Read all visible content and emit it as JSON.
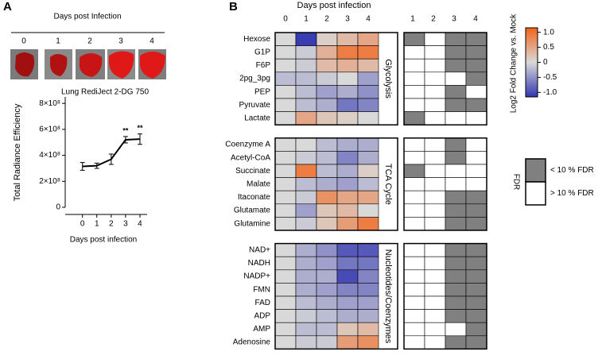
{
  "panel_labels": [
    "A",
    "B"
  ],
  "images": {
    "header": "Days post Infection",
    "labels": [
      "0",
      "1",
      "2",
      "3",
      "4"
    ]
  },
  "chart_data": [
    {
      "type": "line",
      "title": "Lung RediJect 2-DG 750",
      "x_label": "Days post infection",
      "y_label": "Total Radiance Efficiency",
      "x": [
        0,
        1,
        2,
        3,
        4
      ],
      "values": [
        315000000,
        320000000,
        370000000,
        520000000,
        525000000
      ],
      "errors": [
        30000000,
        20000000,
        40000000,
        25000000,
        40000000
      ],
      "color": "#000000",
      "xlim": [
        -1.2,
        4.5
      ],
      "xticks": [
        0,
        1,
        2,
        3,
        4
      ],
      "ylim": [
        0,
        850000000
      ],
      "yticks": [
        0,
        {
          "value": 200000000,
          "label": "2×10⁸"
        },
        {
          "value": 400000000,
          "label": "4×10⁸"
        },
        {
          "value": 600000000,
          "label": "6×10⁸"
        },
        {
          "value": 800000000,
          "label": "8×10⁸"
        }
      ],
      "annotations": [
        {
          "x": 3,
          "text": "**"
        },
        {
          "x": 4,
          "text": "**"
        }
      ]
    },
    {
      "type": "heatmap",
      "title": "Days post infection",
      "columns": [
        "0",
        "1",
        "2",
        "3",
        "4"
      ],
      "clim": [
        -1.15,
        1.15
      ],
      "colors": {
        "low": "#3236b0",
        "mid": "#d9d9d9",
        "high": "#f26419"
      },
      "colorbar": {
        "label": "Log2 Fold Change vs. Mock",
        "ticks": [
          {
            "value": 1,
            "label": "1.0"
          },
          0.5,
          0,
          -0.5,
          {
            "value": -1,
            "label": "-1.0"
          }
        ]
      },
      "groups": [
        {
          "name": "Glycolysis",
          "rows": [
            "Hexose",
            "G1P",
            "F6P",
            "2pg_3pg",
            "PEP",
            "Pyruvate",
            "Lactate"
          ],
          "values": [
            [
              0,
              -1.1,
              0.1,
              0.3,
              0.5
            ],
            [
              0,
              -0.1,
              0.4,
              0.9,
              0.9
            ],
            [
              0,
              -0.1,
              0.3,
              0.4,
              0.3
            ],
            [
              -0.2,
              -0.2,
              -0.1,
              0,
              -0.4
            ],
            [
              0,
              -0.2,
              -0.4,
              -0.3,
              -0.5
            ],
            [
              0,
              -0.2,
              -0.3,
              -0.7,
              -0.6
            ],
            [
              0,
              0.5,
              0.2,
              0.1,
              0
            ]
          ]
        },
        {
          "name": "TCA Cycle",
          "rows": [
            "Coenzyme A",
            "Acetyl-CoA",
            "Succinate",
            "Malate",
            "Itaconate",
            "Glutamate",
            "Glutamine"
          ],
          "values": [
            [
              0,
              0,
              -0.2,
              -0.3,
              -0.3
            ],
            [
              0,
              -0.1,
              -0.2,
              -0.6,
              -0.3
            ],
            [
              0,
              0.9,
              -0.2,
              -0.3,
              0.1
            ],
            [
              0,
              -0.2,
              -0.3,
              -0.4,
              -0.2
            ],
            [
              0,
              -0.1,
              0.7,
              0.5,
              0.5
            ],
            [
              0,
              -0.4,
              0.2,
              0.3,
              0
            ],
            [
              0,
              -0.1,
              0.2,
              0.6,
              0.9
            ]
          ]
        },
        {
          "name": "Nucleotides/Coenzymes",
          "rows": [
            "NAD+",
            "NADH",
            "NADP+",
            "FMN",
            "FAD",
            "ADP",
            "AMP",
            "Adenosine"
          ],
          "values": [
            [
              0,
              -0.3,
              -0.5,
              -0.9,
              -0.9
            ],
            [
              0,
              -0.3,
              -0.4,
              -0.7,
              -0.7
            ],
            [
              0,
              -0.3,
              -0.3,
              -1.0,
              -0.6
            ],
            [
              0,
              -0.3,
              -0.4,
              -0.6,
              -0.6
            ],
            [
              0,
              -0.2,
              -0.3,
              -0.4,
              -0.4
            ],
            [
              0,
              -0.1,
              -0.2,
              -0.3,
              -0.3
            ],
            [
              0,
              -0.2,
              -0.2,
              0.2,
              0.3
            ],
            [
              0,
              -0.1,
              -0.1,
              0.6,
              0.7
            ]
          ]
        }
      ]
    },
    {
      "type": "matrix",
      "columns": [
        "1",
        "2",
        "3",
        "4"
      ],
      "legend": {
        "title": "FDR",
        "items": [
          {
            "label": "< 10 % FDR",
            "color": "#808080"
          },
          {
            "label": "> 10 % FDR",
            "color": "#ffffff"
          }
        ]
      },
      "groups": [
        {
          "significant": [
            [
              true,
              false,
              true,
              true
            ],
            [
              false,
              false,
              true,
              true
            ],
            [
              false,
              false,
              true,
              true
            ],
            [
              false,
              false,
              false,
              true
            ],
            [
              false,
              false,
              true,
              false
            ],
            [
              false,
              false,
              true,
              true
            ],
            [
              true,
              false,
              false,
              false
            ]
          ]
        },
        {
          "significant": [
            [
              false,
              false,
              true,
              false
            ],
            [
              false,
              false,
              true,
              false
            ],
            [
              true,
              false,
              false,
              false
            ],
            [
              false,
              false,
              false,
              false
            ],
            [
              false,
              false,
              true,
              true
            ],
            [
              false,
              false,
              true,
              true
            ],
            [
              false,
              false,
              true,
              true
            ]
          ]
        },
        {
          "significant": [
            [
              false,
              false,
              true,
              true
            ],
            [
              false,
              false,
              true,
              true
            ],
            [
              false,
              false,
              true,
              true
            ],
            [
              false,
              false,
              true,
              true
            ],
            [
              false,
              false,
              true,
              true
            ],
            [
              false,
              false,
              true,
              true
            ],
            [
              false,
              false,
              false,
              true
            ],
            [
              false,
              false,
              true,
              true
            ]
          ]
        }
      ]
    }
  ]
}
